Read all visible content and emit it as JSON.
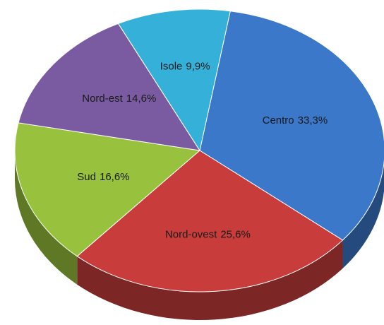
{
  "chart_data": {
    "type": "pie",
    "categories": [
      "Centro",
      "Nord-ovest",
      "Sud",
      "Nord-est",
      "Isole"
    ],
    "values": [
      33.3,
      25.6,
      16.6,
      14.6,
      9.9
    ],
    "value_labels": [
      "33,3%",
      "25,6%",
      "16,6%",
      "14,6%",
      "9,9%"
    ],
    "colors": [
      "#3b78c9",
      "#c83d3b",
      "#98c23e",
      "#7a5ba1",
      "#35b1d9"
    ]
  }
}
